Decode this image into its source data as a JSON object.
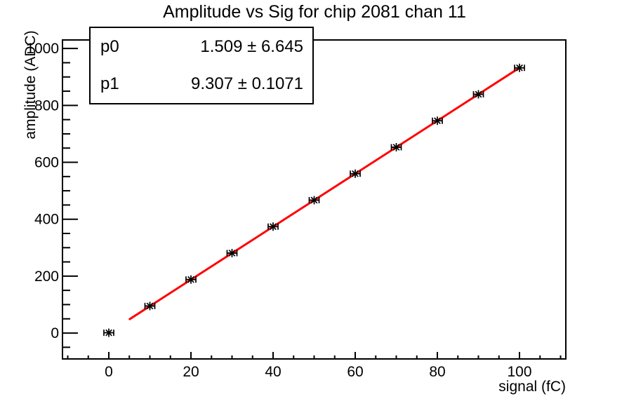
{
  "title": "Amplitude vs Sig for chip 2081 chan 11",
  "stats_box": {
    "rows": [
      {
        "name": "p0",
        "value": "1.509 ± 6.645"
      },
      {
        "name": "p1",
        "value": "9.307 ± 0.1071"
      }
    ]
  },
  "chart_data": {
    "type": "scatter",
    "title": "Amplitude vs Sig for chip 2081 chan 11",
    "xlabel": "signal (fC)",
    "ylabel": "amplitude (ADC)",
    "x": [
      0,
      10,
      20,
      30,
      40,
      50,
      60,
      70,
      80,
      90,
      100
    ],
    "y": [
      1,
      95,
      188,
      281,
      374,
      467,
      560,
      653,
      746,
      839,
      932
    ],
    "x_error": 1.2,
    "marker": "asterisk",
    "marker_color": "#000000",
    "fit": {
      "type": "linear",
      "p0": 1.509,
      "p1": 9.307,
      "range": [
        5.1,
        100
      ],
      "color": "#ff0000"
    },
    "xlim": [
      -11.28,
      111.28
    ],
    "ylim": [
      -91,
      1030
    ],
    "x_major_ticks": [
      0,
      20,
      40,
      60,
      80,
      100
    ],
    "x_minor_step": 5,
    "y_major_ticks": [
      0,
      200,
      400,
      600,
      800,
      1000
    ],
    "y_minor_step": 50,
    "grid": false,
    "legend": "none",
    "axis_color": "#000000",
    "background_color": "#ffffff"
  }
}
